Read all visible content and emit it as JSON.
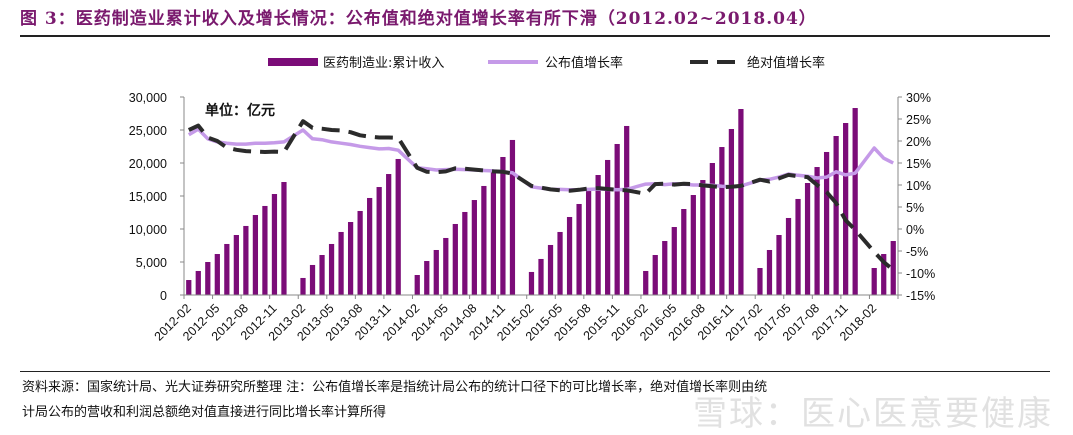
{
  "title": "图 3：医药制造业累计收入及增长情况：公布值和绝对值增长率有所下滑（2012.02~2018.04）",
  "unit_label": "单位：亿元",
  "footnote": {
    "line1": "资料来源：国家统计局、光大证券研究所整理  注：公布值增长率是指统计局公布的统计口径下的可比增长率，绝对值增长率则由统",
    "line2": "计局公布的营收和利润总额绝对值直接进行同比增长率计算所得"
  },
  "watermark": "雪球：医心医意要健康",
  "chart_data": {
    "type": "bar+line",
    "legend_position": "top",
    "grid": false,
    "categories": [
      "2012-02",
      "2012-03",
      "2012-04",
      "2012-05",
      "2012-06",
      "2012-07",
      "2012-08",
      "2012-09",
      "2012-10",
      "2012-11",
      "2012-12",
      "2013-01",
      "2013-02",
      "2013-03",
      "2013-04",
      "2013-05",
      "2013-06",
      "2013-07",
      "2013-08",
      "2013-09",
      "2013-10",
      "2013-11",
      "2013-12",
      "2014-01",
      "2014-02",
      "2014-03",
      "2014-04",
      "2014-05",
      "2014-06",
      "2014-07",
      "2014-08",
      "2014-09",
      "2014-10",
      "2014-11",
      "2014-12",
      "2015-01",
      "2015-02",
      "2015-03",
      "2015-04",
      "2015-05",
      "2015-06",
      "2015-07",
      "2015-08",
      "2015-09",
      "2015-10",
      "2015-11",
      "2015-12",
      "2016-01",
      "2016-02",
      "2016-03",
      "2016-04",
      "2016-05",
      "2016-06",
      "2016-07",
      "2016-08",
      "2016-09",
      "2016-10",
      "2016-11",
      "2016-12",
      "2017-01",
      "2017-02",
      "2017-03",
      "2017-04",
      "2017-05",
      "2017-06",
      "2017-07",
      "2017-08",
      "2017-09",
      "2017-10",
      "2017-11",
      "2017-12",
      "2018-01",
      "2018-02",
      "2018-03",
      "2018-04"
    ],
    "tick_labels": [
      "2012-02",
      "2012-05",
      "2012-08",
      "2012-11",
      "2013-02",
      "2013-05",
      "2013-08",
      "2013-11",
      "2014-02",
      "2014-05",
      "2014-08",
      "2014-11",
      "2015-02",
      "2015-05",
      "2015-08",
      "2015-11",
      "2016-02",
      "2016-05",
      "2016-08",
      "2016-11",
      "2017-02",
      "2017-05",
      "2017-08",
      "2017-11",
      "2018-02"
    ],
    "left_axis": {
      "ylim": [
        0,
        30000
      ],
      "ticks": [
        "0",
        "5,000",
        "10,000",
        "15,000",
        "20,000",
        "25,000",
        "30,000"
      ]
    },
    "right_axis": {
      "ylim": [
        -15,
        30
      ],
      "ticks": [
        "-15%",
        "-10%",
        "-5%",
        "0%",
        "5%",
        "10%",
        "15%",
        "20%",
        "25%",
        "30%"
      ]
    },
    "series": [
      {
        "name": "医药制造业:累计收入",
        "type": "bar",
        "axis": "left",
        "color": "#7b0c78",
        "values": [
          2270,
          3640,
          5000,
          6210,
          7730,
          9090,
          10460,
          12120,
          13490,
          15300,
          17120,
          null,
          2580,
          4550,
          6060,
          7730,
          9550,
          11060,
          12730,
          14700,
          16360,
          18330,
          20610,
          null,
          3030,
          5150,
          6820,
          8640,
          10760,
          12580,
          14390,
          16520,
          18640,
          20910,
          23490,
          null,
          3490,
          5460,
          7580,
          9550,
          11820,
          13790,
          15910,
          18180,
          20460,
          22880,
          25610,
          null,
          3640,
          6060,
          8180,
          10300,
          13030,
          15150,
          17420,
          20000,
          22420,
          25150,
          28180,
          null,
          4090,
          6820,
          9090,
          11670,
          14550,
          16970,
          19390,
          21670,
          24090,
          26060,
          28330,
          null,
          4090,
          6210,
          8180
        ]
      },
      {
        "name": "公布值增长率",
        "type": "line",
        "axis": "right",
        "color": "#c59ae8",
        "values": [
          21.4,
          22.7,
          20.5,
          19.8,
          19.5,
          19.3,
          19.3,
          19.5,
          19.5,
          19.6,
          19.8,
          null,
          22.5,
          20.5,
          20.3,
          19.8,
          19.5,
          19.2,
          18.8,
          18.5,
          18.2,
          18.3,
          17.9,
          null,
          13.9,
          13.7,
          13.4,
          13.5,
          13.6,
          13.5,
          13.4,
          13.3,
          13.2,
          13.0,
          12.8,
          null,
          9.6,
          9.3,
          9.0,
          9.0,
          8.9,
          8.9,
          9.0,
          9.1,
          9.0,
          8.9,
          9.0,
          null,
          10.2,
          10.3,
          10.1,
          10.3,
          10.2,
          10.0,
          10.0,
          9.9,
          9.7,
          9.6,
          9.8,
          null,
          11.1,
          11.3,
          11.8,
          12.5,
          12.2,
          12.0,
          11.6,
          11.8,
          13.0,
          12.3,
          12.7,
          null,
          18.4,
          16.1,
          15.0
        ]
      },
      {
        "name": "绝对值增长率",
        "type": "line",
        "axis": "right",
        "color": "#2b2b2b",
        "dashed": true,
        "values": [
          22.5,
          23.5,
          20.8,
          20.0,
          18.5,
          18.0,
          17.7,
          17.6,
          17.5,
          17.6,
          17.5,
          null,
          24.5,
          23.0,
          22.8,
          22.5,
          22.4,
          22.0,
          21.3,
          21.0,
          20.8,
          20.8,
          20.7,
          null,
          13.9,
          13.0,
          12.9,
          13.1,
          13.8,
          13.7,
          13.5,
          13.3,
          13.1,
          13.0,
          12.6,
          null,
          9.8,
          9.4,
          9.0,
          8.8,
          8.7,
          8.9,
          9.2,
          9.3,
          9.1,
          8.9,
          8.8,
          null,
          8.0,
          10.2,
          10.3,
          10.1,
          10.3,
          10.2,
          9.9,
          9.7,
          9.5,
          9.6,
          9.8,
          null,
          11.2,
          10.8,
          11.5,
          12.3,
          12.0,
          11.8,
          10.0,
          8.4,
          5.9,
          2.0,
          -0.2,
          null,
          -5.2,
          -7.5,
          -9.3
        ]
      }
    ]
  }
}
